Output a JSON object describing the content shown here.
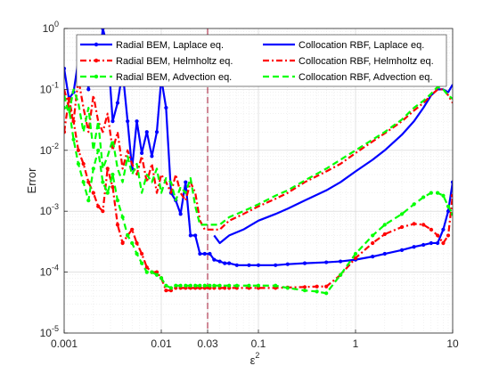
{
  "chart_data": {
    "type": "line",
    "xscale": "log",
    "yscale": "log",
    "xlim": [
      0.001,
      10
    ],
    "ylim": [
      1e-05,
      1
    ],
    "xlabel": "ε",
    "xlabel_sup": "2",
    "ylabel": "Error",
    "grid": true,
    "legend_position": "top",
    "x_ticks": [
      {
        "value": 0.001,
        "label": "0.001"
      },
      {
        "value": 0.01,
        "label": "0.01"
      },
      {
        "value": 0.03,
        "label": "0.03"
      },
      {
        "value": 0.1,
        "label": "0.1"
      },
      {
        "value": 1,
        "label": "1"
      },
      {
        "value": 10,
        "label": "10"
      }
    ],
    "y_ticks": [
      {
        "value": 1e-05,
        "base": "10",
        "exp": "-5"
      },
      {
        "value": 0.0001,
        "base": "10",
        "exp": "-4"
      },
      {
        "value": 0.001,
        "base": "10",
        "exp": "-3"
      },
      {
        "value": 0.01,
        "base": "10",
        "exp": "-2"
      },
      {
        "value": 0.1,
        "base": "10",
        "exp": "-1"
      },
      {
        "value": 1,
        "base": "10",
        "exp": "0"
      }
    ],
    "vline": {
      "x": 0.03,
      "color": "#a2142f"
    },
    "series": [
      {
        "name": "Radial BEM, Laplace eq.",
        "color": "#0000ff",
        "dash": "solid",
        "marker": true,
        "x": [
          0.001,
          0.00112,
          0.00125,
          0.0014,
          0.00158,
          0.00178,
          0.002,
          0.00224,
          0.0025,
          0.0028,
          0.00316,
          0.00355,
          0.004,
          0.0045,
          0.005,
          0.0056,
          0.0063,
          0.0071,
          0.008,
          0.009,
          0.01,
          0.0112,
          0.0126,
          0.0141,
          0.0158,
          0.0178,
          0.02,
          0.0224,
          0.025,
          0.028,
          0.0316,
          0.035,
          0.04,
          0.045,
          0.05,
          0.06,
          0.08,
          0.1,
          0.15,
          0.2,
          0.3,
          0.5,
          0.7,
          1,
          1.5,
          2,
          3,
          4,
          5,
          6,
          7,
          8,
          9,
          10
        ],
        "y": [
          0.22,
          0.07,
          0.09,
          0.3,
          0.4,
          0.1,
          0.7,
          0.2,
          1.0,
          0.5,
          0.03,
          0.06,
          0.2,
          0.03,
          0.005,
          0.03,
          0.009,
          0.02,
          0.008,
          0.02,
          0.15,
          0.05,
          0.002,
          0.0015,
          0.0009,
          0.003,
          0.0004,
          0.0004,
          0.0002,
          0.0002,
          0.0002,
          0.00016,
          0.00015,
          0.00014,
          0.00014,
          0.00013,
          0.00013,
          0.00013,
          0.00013,
          0.000135,
          0.00014,
          0.000145,
          0.00015,
          0.00016,
          0.00018,
          0.0002,
          0.00023,
          0.00026,
          0.00028,
          0.0003,
          0.0003,
          0.0005,
          0.001,
          0.003
        ]
      },
      {
        "name": "Radial BEM, Helmholtz eq.",
        "color": "#ff0000",
        "dash": "dashdot",
        "marker": true,
        "x": [
          0.001,
          0.00112,
          0.00125,
          0.0014,
          0.00158,
          0.00178,
          0.002,
          0.00224,
          0.0025,
          0.0028,
          0.00316,
          0.00355,
          0.004,
          0.0045,
          0.005,
          0.0056,
          0.0063,
          0.0071,
          0.008,
          0.009,
          0.01,
          0.0112,
          0.0126,
          0.0141,
          0.0158,
          0.0178,
          0.02,
          0.0224,
          0.025,
          0.028,
          0.0316,
          0.035,
          0.04,
          0.045,
          0.05,
          0.06,
          0.08,
          0.1,
          0.15,
          0.2,
          0.3,
          0.4,
          0.5,
          0.7,
          1,
          1.5,
          2,
          3,
          4,
          5,
          6,
          7,
          8,
          9,
          10
        ],
        "y": [
          0.02,
          0.07,
          0.03,
          0.01,
          0.006,
          0.003,
          0.002,
          0.0012,
          0.001,
          0.005,
          0.0025,
          0.0006,
          0.0003,
          0.0004,
          0.0005,
          0.0003,
          0.0002,
          0.00012,
          0.0001,
          0.0001,
          8e-05,
          5e-05,
          5e-05,
          5.5e-05,
          5.5e-05,
          5.5e-05,
          5.5e-05,
          5.5e-05,
          5.5e-05,
          5.5e-05,
          5.5e-05,
          5.5e-05,
          5.5e-05,
          5.5e-05,
          5.5e-05,
          5.5e-05,
          5.5e-05,
          5.5e-05,
          5.5e-05,
          5.6e-05,
          5.7e-05,
          5.8e-05,
          5.8e-05,
          9e-05,
          0.00017,
          0.0003,
          0.00042,
          0.00055,
          0.00062,
          0.0006,
          0.0005,
          0.0004,
          0.0003,
          0.0004,
          0.0018
        ]
      },
      {
        "name": "Radial BEM, Advection eq.",
        "color": "#00ff00",
        "dash": "dashed",
        "marker": true,
        "x": [
          0.001,
          0.00112,
          0.00125,
          0.0014,
          0.00158,
          0.00178,
          0.002,
          0.00224,
          0.0025,
          0.0028,
          0.00316,
          0.00355,
          0.004,
          0.0045,
          0.005,
          0.0056,
          0.0063,
          0.0071,
          0.008,
          0.009,
          0.01,
          0.0112,
          0.0126,
          0.0141,
          0.0158,
          0.0178,
          0.02,
          0.0224,
          0.025,
          0.028,
          0.0316,
          0.035,
          0.04,
          0.05,
          0.06,
          0.08,
          0.1,
          0.15,
          0.2,
          0.3,
          0.4,
          0.5,
          0.7,
          1,
          1.5,
          2,
          3,
          4,
          5,
          6,
          7,
          8,
          9,
          10
        ],
        "y": [
          0.05,
          0.05,
          0.015,
          0.006,
          0.003,
          0.0015,
          0.005,
          0.01,
          0.003,
          0.002,
          0.004,
          0.0015,
          0.0008,
          0.0004,
          0.0003,
          0.0002,
          0.00014,
          0.0001,
          0.0001,
          9e-05,
          8e-05,
          6e-05,
          5.5e-05,
          6e-05,
          6e-05,
          6e-05,
          6e-05,
          6e-05,
          6e-05,
          6e-05,
          6e-05,
          6e-05,
          6e-05,
          6e-05,
          6e-05,
          6e-05,
          6e-05,
          6e-05,
          5.5e-05,
          5e-05,
          4.8e-05,
          4.5e-05,
          9e-05,
          0.0002,
          0.0004,
          0.0006,
          0.0009,
          0.0013,
          0.0017,
          0.002,
          0.002,
          0.0018,
          0.0012,
          0.0009
        ]
      },
      {
        "name": "Collocation RBF, Laplace eq.",
        "color": "#0000ff",
        "dash": "solid",
        "marker": false,
        "x": [
          0.035,
          0.04,
          0.05,
          0.07,
          0.1,
          0.15,
          0.2,
          0.3,
          0.5,
          0.7,
          1,
          1.5,
          2,
          3,
          4,
          5,
          6,
          7,
          8,
          9,
          10
        ],
        "y": [
          0.0004,
          0.0003,
          0.0004,
          0.0005,
          0.0007,
          0.0009,
          0.0011,
          0.0015,
          0.0022,
          0.003,
          0.0045,
          0.007,
          0.01,
          0.018,
          0.03,
          0.05,
          0.08,
          0.1,
          0.1,
          0.09,
          0.12
        ]
      },
      {
        "name": "Collocation RBF, Helmholtz eq.",
        "color": "#ff0000",
        "dash": "dashdot",
        "marker": false,
        "x": [
          0.001,
          0.00112,
          0.00125,
          0.0014,
          0.00158,
          0.00178,
          0.002,
          0.00224,
          0.0025,
          0.0028,
          0.00316,
          0.00355,
          0.004,
          0.0045,
          0.005,
          0.0056,
          0.0063,
          0.0071,
          0.008,
          0.009,
          0.01,
          0.0112,
          0.0126,
          0.0141,
          0.0158,
          0.0178,
          0.02,
          0.0224,
          0.025,
          0.028,
          0.0316,
          0.035,
          0.04,
          0.05,
          0.07,
          0.1,
          0.15,
          0.2,
          0.3,
          0.5,
          0.7,
          1,
          1.5,
          2,
          3,
          4,
          5,
          6,
          7,
          8,
          9,
          10
        ],
        "y": [
          0.1,
          0.05,
          0.03,
          0.15,
          0.05,
          0.02,
          0.08,
          0.03,
          0.02,
          0.04,
          0.01,
          0.02,
          0.005,
          0.01,
          0.006,
          0.004,
          0.008,
          0.003,
          0.006,
          0.002,
          0.004,
          0.003,
          0.002,
          0.004,
          0.002,
          0.0015,
          0.003,
          0.002,
          0.0007,
          0.0005,
          0.0005,
          0.0005,
          0.0005,
          0.0007,
          0.0009,
          0.0012,
          0.0016,
          0.002,
          0.003,
          0.0045,
          0.006,
          0.009,
          0.014,
          0.019,
          0.03,
          0.045,
          0.06,
          0.08,
          0.1,
          0.1,
          0.08,
          0.06
        ]
      },
      {
        "name": "Collocation RBF, Advection eq.",
        "color": "#00ff00",
        "dash": "dashed",
        "marker": false,
        "x": [
          0.001,
          0.00112,
          0.00125,
          0.0014,
          0.00158,
          0.00178,
          0.002,
          0.00224,
          0.0025,
          0.0028,
          0.00316,
          0.00355,
          0.004,
          0.0045,
          0.005,
          0.0056,
          0.0063,
          0.0071,
          0.008,
          0.009,
          0.01,
          0.0112,
          0.0126,
          0.0141,
          0.0158,
          0.0178,
          0.02,
          0.0224,
          0.025,
          0.028,
          0.0316,
          0.035,
          0.04,
          0.05,
          0.07,
          0.1,
          0.15,
          0.2,
          0.3,
          0.5,
          0.7,
          1,
          1.5,
          2,
          3,
          4,
          5,
          6,
          7,
          8,
          9,
          10
        ],
        "y": [
          0.08,
          0.04,
          0.1,
          0.06,
          0.02,
          0.05,
          0.01,
          0.03,
          0.005,
          0.008,
          0.015,
          0.005,
          0.003,
          0.008,
          0.004,
          0.006,
          0.002,
          0.004,
          0.003,
          0.005,
          0.002,
          0.0035,
          0.003,
          0.0015,
          0.0025,
          0.002,
          0.0035,
          0.0012,
          0.0006,
          0.0006,
          0.0006,
          0.0006,
          0.0006,
          0.0008,
          0.001,
          0.0013,
          0.0018,
          0.0022,
          0.0032,
          0.005,
          0.007,
          0.01,
          0.015,
          0.02,
          0.032,
          0.05,
          0.065,
          0.085,
          0.11,
          0.1,
          0.08,
          0.07
        ]
      }
    ]
  }
}
